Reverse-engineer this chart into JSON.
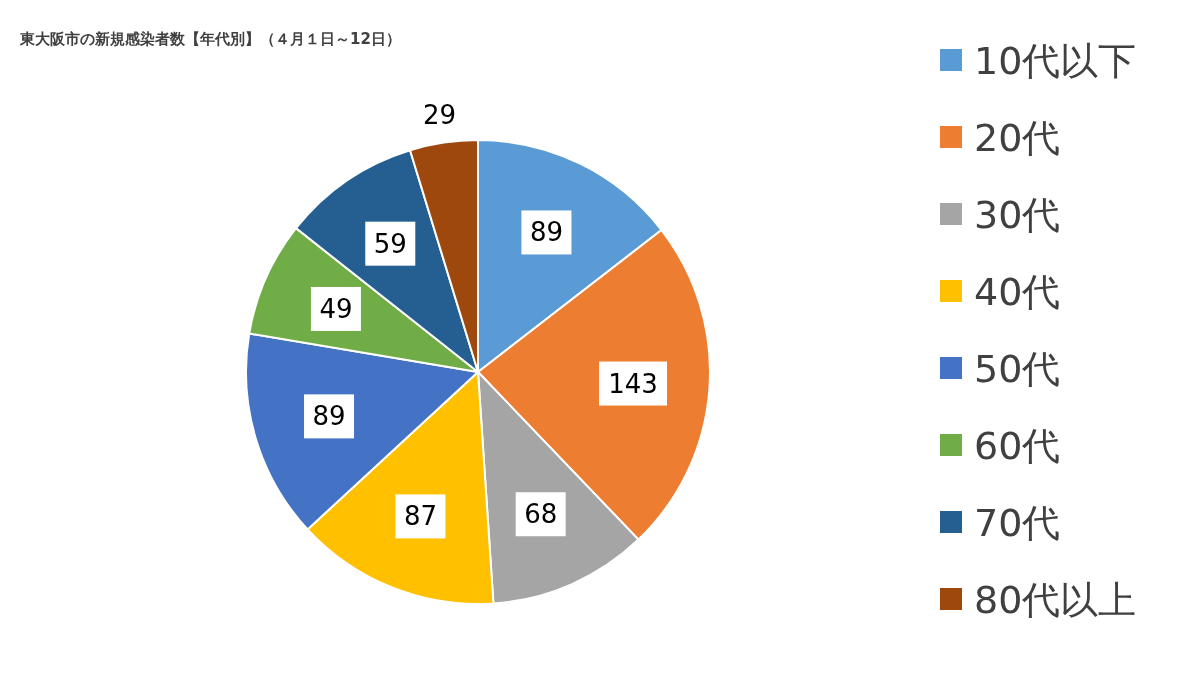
{
  "chart_data": {
    "type": "pie",
    "title": "東大阪市の新規感染者数【年代別】（４月１日～12日）",
    "categories": [
      "10代以下",
      "20代",
      "30代",
      "40代",
      "50代",
      "60代",
      "70代",
      "80代以上"
    ],
    "values": [
      89,
      143,
      68,
      87,
      89,
      49,
      59,
      29
    ],
    "colors": [
      "#5b9bd5",
      "#ed7d31",
      "#a5a5a5",
      "#ffc000",
      "#4472c4",
      "#70ad47",
      "#255e91",
      "#9e480e"
    ],
    "data_labels": true,
    "legend": "right"
  }
}
